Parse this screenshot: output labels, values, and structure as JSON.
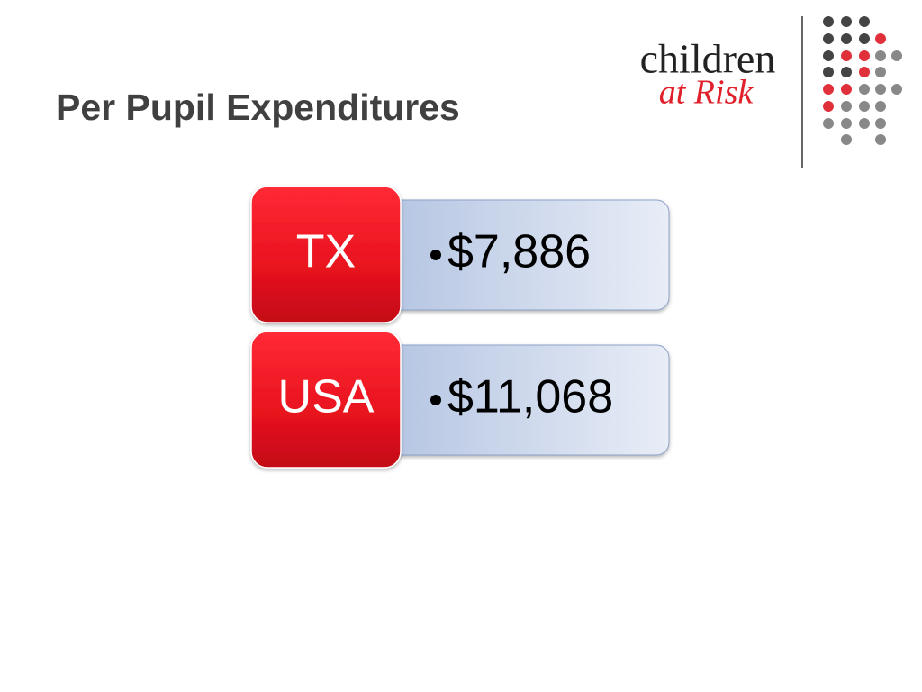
{
  "title": "Per Pupil Expenditures",
  "logo": {
    "line1": "children",
    "line2": "at Risk"
  },
  "items": [
    {
      "label": "TX",
      "value": "$7,886"
    },
    {
      "label": "USA",
      "value": "$11,068"
    }
  ]
}
